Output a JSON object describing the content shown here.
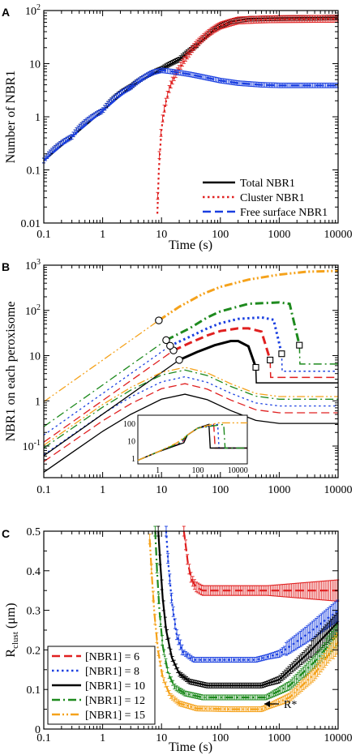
{
  "chart_data": [
    {
      "panel": "A",
      "type": "line",
      "xlabel": "Time (s)",
      "ylabel": "Number of NBR1",
      "xscale": "log",
      "yscale": "log",
      "xlim": [
        0.1,
        10000
      ],
      "ylim": [
        0.01,
        100
      ],
      "xticks": [
        "0.1",
        "1",
        "10",
        "100",
        "1000",
        "10000"
      ],
      "yticks": [
        "0.01",
        "0.1",
        "1",
        "10",
        "10^2"
      ],
      "legend_position": "bottom-right",
      "series": [
        {
          "name": "Total NBR1",
          "color": "#000000",
          "style": "solid",
          "x": [
            0.1,
            0.3,
            1,
            3,
            10,
            20,
            40,
            80,
            150,
            300,
            1000,
            10000
          ],
          "y": [
            0.15,
            0.42,
            1.3,
            3.7,
            8,
            12,
            22,
            45,
            62,
            70,
            72,
            74
          ]
        },
        {
          "name": "Cluster NBR1",
          "color": "#e02020",
          "style": "dotted",
          "x": [
            8.5,
            9,
            10,
            12,
            15,
            20,
            30,
            50,
            100,
            200,
            500,
            1000,
            10000
          ],
          "y": [
            0.015,
            0.1,
            0.6,
            2,
            4.5,
            8,
            16,
            30,
            52,
            65,
            68,
            69,
            70
          ]
        },
        {
          "name": "Free surface NBR1",
          "color": "#1a3fe0",
          "style": "dashed",
          "x": [
            0.1,
            0.3,
            1,
            3,
            7,
            10,
            15,
            30,
            60,
            100,
            200,
            500,
            1000,
            10000
          ],
          "y": [
            0.15,
            0.42,
            1.3,
            3.6,
            6.8,
            7.5,
            7.1,
            6.3,
            5.4,
            4.8,
            4.3,
            4.0,
            3.9,
            3.9
          ]
        }
      ]
    },
    {
      "panel": "B",
      "type": "line",
      "xlabel": "",
      "ylabel": "NBR1 on each peroxisome",
      "xscale": "log",
      "yscale": "log",
      "xlim": [
        0.1,
        10000
      ],
      "ylim": [
        0.02,
        1000
      ],
      "xticks": [
        "0.1",
        "1",
        "10",
        "100",
        "1000",
        "10000"
      ],
      "yticks": [
        "10^-1",
        "1",
        "10",
        "10^2",
        "10^3"
      ],
      "series": [
        {
          "color": "#e02020",
          "style": "dashed",
          "nucleation": [
            16,
            13
          ],
          "drop": [
            700,
            8
          ],
          "upper_x": [
            16,
            30,
            60,
            100,
            200,
            300,
            500,
            700
          ],
          "upper_y": [
            13,
            19,
            28,
            35,
            40,
            40,
            34,
            8
          ],
          "tail_y": 3.3,
          "lower_peak": 2.4
        },
        {
          "color": "#1a3fe0",
          "style": "dotted",
          "nucleation": [
            14,
            16.5
          ],
          "drop": [
            1100,
            11
          ],
          "upper_x": [
            14,
            30,
            60,
            100,
            200,
            500,
            800,
            1100
          ],
          "upper_y": [
            16.5,
            26,
            40,
            52,
            65,
            70,
            62,
            11
          ],
          "tail_y": 4.5,
          "lower_peak": 3.4
        },
        {
          "color": "#000000",
          "style": "solid",
          "nucleation": [
            20,
            8
          ],
          "drop": [
            400,
            5.5
          ],
          "upper_x": [
            20,
            40,
            80,
            150,
            200,
            300,
            400
          ],
          "upper_y": [
            8,
            12,
            17,
            21,
            21,
            16,
            5.5
          ],
          "tail_y": 2.5,
          "lower_peak": 1.4
        },
        {
          "color": "#1e8a1e",
          "style": "dashdot",
          "nucleation": [
            12,
            22
          ],
          "drop": [
            2200,
            17
          ],
          "upper_x": [
            12,
            30,
            60,
            100,
            300,
            1000,
            1500,
            2200
          ],
          "upper_y": [
            22,
            40,
            70,
            95,
            140,
            150,
            140,
            17
          ],
          "tail_y": 6.5,
          "lower_peak": 4.8
        },
        {
          "color": "#f5a21b",
          "style": "dashdotdot",
          "nucleation": [
            9,
            60
          ],
          "upper_x": [
            9,
            20,
            50,
            100,
            300,
            1000,
            3000,
            10000
          ],
          "upper_y": [
            60,
            120,
            230,
            330,
            480,
            620,
            720,
            750
          ],
          "lower_peak": 5.5
        }
      ],
      "inset": {
        "xticks": [
          "1",
          "100",
          "10000"
        ],
        "yticks": [
          "1",
          "10",
          "100"
        ]
      }
    },
    {
      "panel": "C",
      "type": "line",
      "xlabel": "Time (s)",
      "ylabel": "R",
      "ylabel_sub": "clust",
      "ylabel_unit": " (μm)",
      "xscale": "log",
      "xlim": [
        0.1,
        10000
      ],
      "ylim": [
        0,
        0.5
      ],
      "xticks": [
        "0.1",
        "1",
        "10",
        "100",
        "1000",
        "10000"
      ],
      "yticks": [
        "0",
        "0.1",
        "0.2",
        "0.3",
        "0.4",
        "0.5"
      ],
      "legend_position": "bottom-left",
      "annotation": "R*",
      "series": [
        {
          "name": "[NBR1] = 6",
          "color": "#e02020",
          "style": "dashed",
          "x": [
            24,
            26,
            28,
            32,
            38,
            50,
            100,
            300,
            1000,
            10000
          ],
          "y": [
            0.5,
            0.46,
            0.42,
            0.38,
            0.36,
            0.35,
            0.35,
            0.35,
            0.35,
            0.35
          ]
        },
        {
          "name": "[NBR1] = 8",
          "color": "#1a3fe0",
          "style": "dotted",
          "x": [
            12,
            13,
            15,
            18,
            23,
            35,
            100,
            400,
            1000,
            3000,
            10000
          ],
          "y": [
            0.5,
            0.42,
            0.32,
            0.24,
            0.195,
            0.175,
            0.175,
            0.175,
            0.19,
            0.24,
            0.3
          ]
        },
        {
          "name": "[NBR1] = 10",
          "color": "#000000",
          "style": "solid",
          "x": [
            8.8,
            9.5,
            10.5,
            12,
            15,
            20,
            30,
            60,
            200,
            500,
            1000,
            3000,
            10000
          ],
          "y": [
            0.5,
            0.42,
            0.33,
            0.25,
            0.18,
            0.14,
            0.12,
            0.11,
            0.11,
            0.11,
            0.125,
            0.19,
            0.27
          ]
        },
        {
          "name": "[NBR1] = 12",
          "color": "#1e8a1e",
          "style": "dashdot",
          "x": [
            7.8,
            8.4,
            9.2,
            10.5,
            13,
            17,
            25,
            50,
            200,
            600,
            1500,
            4000,
            10000
          ],
          "y": [
            0.5,
            0.4,
            0.3,
            0.21,
            0.14,
            0.105,
            0.09,
            0.08,
            0.08,
            0.08,
            0.11,
            0.17,
            0.24
          ]
        },
        {
          "name": "[NBR1] = 15",
          "color": "#f5a21b",
          "style": "dashdotdot",
          "x": [
            6.3,
            6.9,
            7.6,
            8.7,
            10.5,
            14,
            20,
            40,
            150,
            500,
            1500,
            4000,
            10000
          ],
          "y": [
            0.48,
            0.38,
            0.29,
            0.2,
            0.13,
            0.085,
            0.065,
            0.052,
            0.05,
            0.05,
            0.08,
            0.14,
            0.22
          ]
        }
      ]
    }
  ]
}
